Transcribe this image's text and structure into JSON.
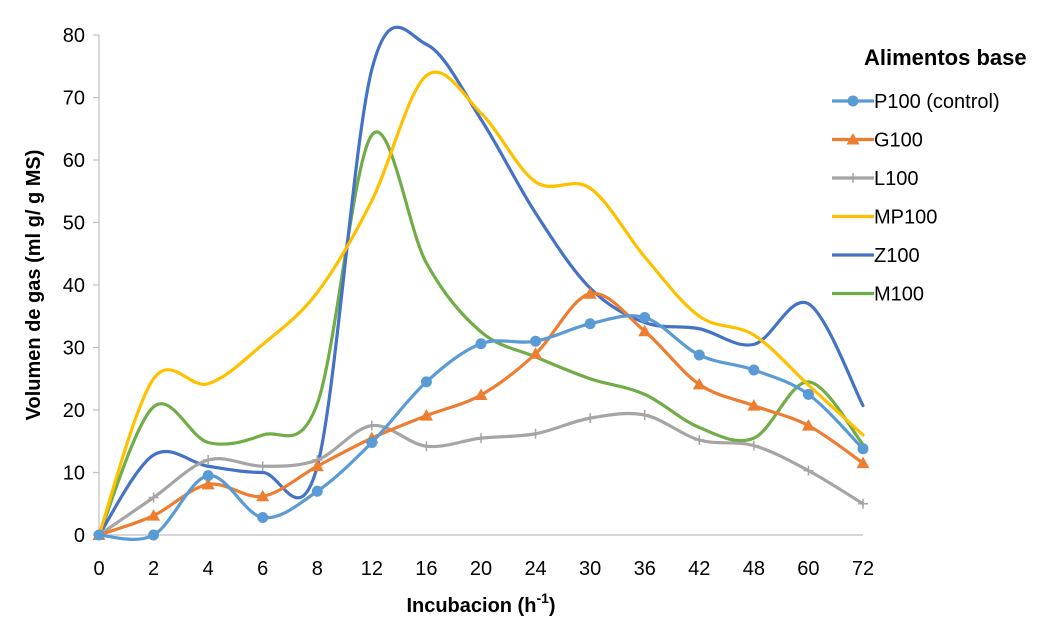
{
  "chart_data": {
    "type": "line",
    "xlabel": "Incubacion (h",
    "xlabel_sup": "-1",
    "xlabel_end": ")",
    "ylabel": "Volumen de gas  (ml g/ g MS)",
    "legend_title": "Alimentos base",
    "legend_position": "right",
    "ylim": [
      0,
      80
    ],
    "yticks": [
      0,
      10,
      20,
      30,
      40,
      50,
      60,
      70,
      80
    ],
    "grid": false,
    "categories": [
      "0",
      "2",
      "4",
      "6",
      "8",
      "12",
      "16",
      "20",
      "24",
      "30",
      "36",
      "42",
      "48",
      "60",
      "72"
    ],
    "series": [
      {
        "name": "P100 (control)",
        "color": "#5B9BD5",
        "marker": "circle",
        "values": [
          0,
          0,
          9.5,
          2.8,
          7,
          14.8,
          24.5,
          30.6,
          31,
          33.8,
          34.8,
          28.8,
          26.4,
          22.5,
          13.8
        ]
      },
      {
        "name": "G100",
        "color": "#ED7D31",
        "marker": "triangle",
        "values": [
          0,
          3.1,
          8.1,
          6.2,
          11,
          15.5,
          19.1,
          22.4,
          29,
          38.6,
          32.6,
          24.1,
          20.7,
          17.5,
          11.5
        ]
      },
      {
        "name": "L100",
        "color": "#A5A5A5",
        "marker": "plus",
        "values": [
          0,
          6,
          12,
          11,
          12,
          17.5,
          14.2,
          15.5,
          16.2,
          18.7,
          19.2,
          15.2,
          14.3,
          10.3,
          5
        ]
      },
      {
        "name": "MP100",
        "color": "#FFC000",
        "marker": "none",
        "values": [
          0,
          25,
          24.2,
          30.5,
          38.8,
          53.5,
          73.5,
          67.5,
          56.5,
          55.5,
          44.5,
          35,
          32,
          24,
          16
        ]
      },
      {
        "name": "Z100",
        "color": "#4472C4",
        "marker": "none",
        "values": [
          0,
          12.8,
          11,
          10,
          11,
          74.5,
          78.5,
          66.5,
          51.5,
          39.5,
          34,
          33,
          30.5,
          37,
          20.7
        ]
      },
      {
        "name": "M100",
        "color": "#70AD47",
        "marker": "none",
        "values": [
          0,
          20.5,
          14.8,
          16,
          21,
          64,
          43.5,
          32.5,
          28.5,
          25,
          22.5,
          17.2,
          15.5,
          24.5,
          14.5
        ]
      }
    ]
  }
}
